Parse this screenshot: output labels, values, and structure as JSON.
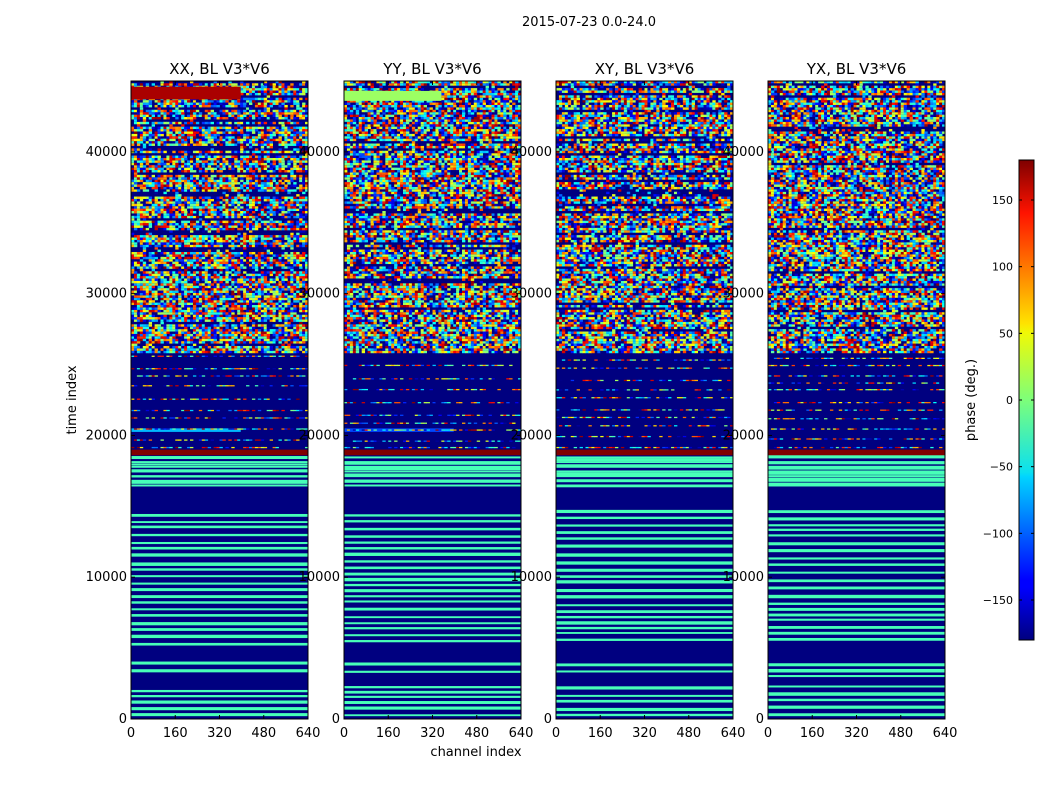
{
  "figure": {
    "suptitle": "2015-07-23 0.0-24.0"
  },
  "chart_data": {
    "type": "heatmap",
    "title": "2015-07-23 0.0-24.0",
    "xlabel": "channel index",
    "ylabel": "time index",
    "xlim": [
      0,
      640
    ],
    "ylim": [
      0,
      45000
    ],
    "x_ticks": [
      0,
      160,
      320,
      480,
      640
    ],
    "y_ticks": [
      0,
      10000,
      20000,
      30000,
      40000
    ],
    "y_tick_labels": [
      "0",
      "10000",
      "20000",
      "30000",
      "40000"
    ],
    "panels": [
      {
        "title": "XX, BL V3*V6",
        "polarization": "XX",
        "baseline": "V3*V6"
      },
      {
        "title": "YY, BL V3*V6",
        "polarization": "YY",
        "baseline": "V3*V6"
      },
      {
        "title": "XY, BL V3*V6",
        "polarization": "XY",
        "baseline": "V3*V6"
      },
      {
        "title": "YX, BL V3*V6",
        "polarization": "YX",
        "baseline": "V3*V6"
      }
    ],
    "colorbar": {
      "label": "phase (deg.)",
      "range": [
        -180,
        180
      ],
      "ticks": [
        -150,
        -100,
        -50,
        0,
        50,
        100,
        150
      ],
      "tick_labels": [
        "−150",
        "−100",
        "−50",
        "0",
        "50",
        "100",
        "150"
      ],
      "colormap": "jet"
    },
    "regions": [
      {
        "time_range": [
          0,
          18500
        ],
        "description": "alternating stripes of -180 deg (dark blue) and ~-20 deg (light green)",
        "phase_values": [
          -180,
          -20
        ]
      },
      {
        "time_range": [
          18500,
          19000
        ],
        "description": "~180 deg (dark red) stripe",
        "phase_values": [
          180
        ]
      },
      {
        "time_range": [
          19000,
          25800
        ],
        "description": "mostly -180 deg with scattered noisy rows",
        "phase_values": [
          -180
        ]
      },
      {
        "time_range": [
          25800,
          45000
        ],
        "description": "noisy phase, full range",
        "phase_values": [
          -180,
          180
        ]
      }
    ]
  }
}
